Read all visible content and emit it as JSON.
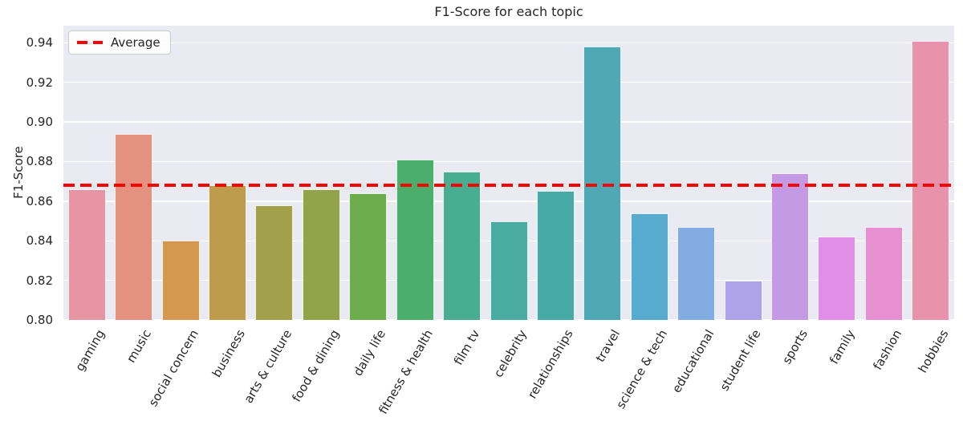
{
  "figure": {
    "title": "F1-Score for each topic"
  },
  "chart_data": {
    "type": "bar",
    "title": "F1-Score for each topic",
    "xlabel": "",
    "ylabel": "F1-Score",
    "categories": [
      "gaming",
      "music",
      "social concern",
      "business",
      "arts & culture",
      "food & dining",
      "daily life",
      "fitness & health",
      "film tv",
      "celebrity",
      "relationships",
      "travel",
      "science & tech",
      "educational",
      "student life",
      "sports",
      "family",
      "fashion",
      "hobbies"
    ],
    "values": [
      0.866,
      0.894,
      0.84,
      0.868,
      0.858,
      0.866,
      0.864,
      0.881,
      0.875,
      0.85,
      0.865,
      0.938,
      0.854,
      0.847,
      0.82,
      0.874,
      0.842,
      0.847,
      0.941
    ],
    "bar_colors": [
      "#e794a3",
      "#e4927f",
      "#d4994e",
      "#bd9c4d",
      "#a3a04b",
      "#93a34a",
      "#6ead4d",
      "#4bae6c",
      "#49ad92",
      "#4aaca0",
      "#48aaa6",
      "#4ea9b5",
      "#57abce",
      "#83ace3",
      "#aea3e8",
      "#c49ae4",
      "#e08ee7",
      "#e78fd0",
      "#e992ab"
    ],
    "yticks": [
      0.8,
      0.82,
      0.84,
      0.86,
      0.88,
      0.9,
      0.92,
      0.94
    ],
    "ylim": [
      0.8,
      0.9486
    ],
    "grid": true,
    "plot_bg": "#eaeaf2",
    "grid_color": "#ffffff",
    "text_color": "#262626",
    "average_line": {
      "value": 0.868,
      "color": "#ff0000",
      "style": "dashed"
    },
    "legend": {
      "label": "Average",
      "position": "upper left"
    }
  }
}
